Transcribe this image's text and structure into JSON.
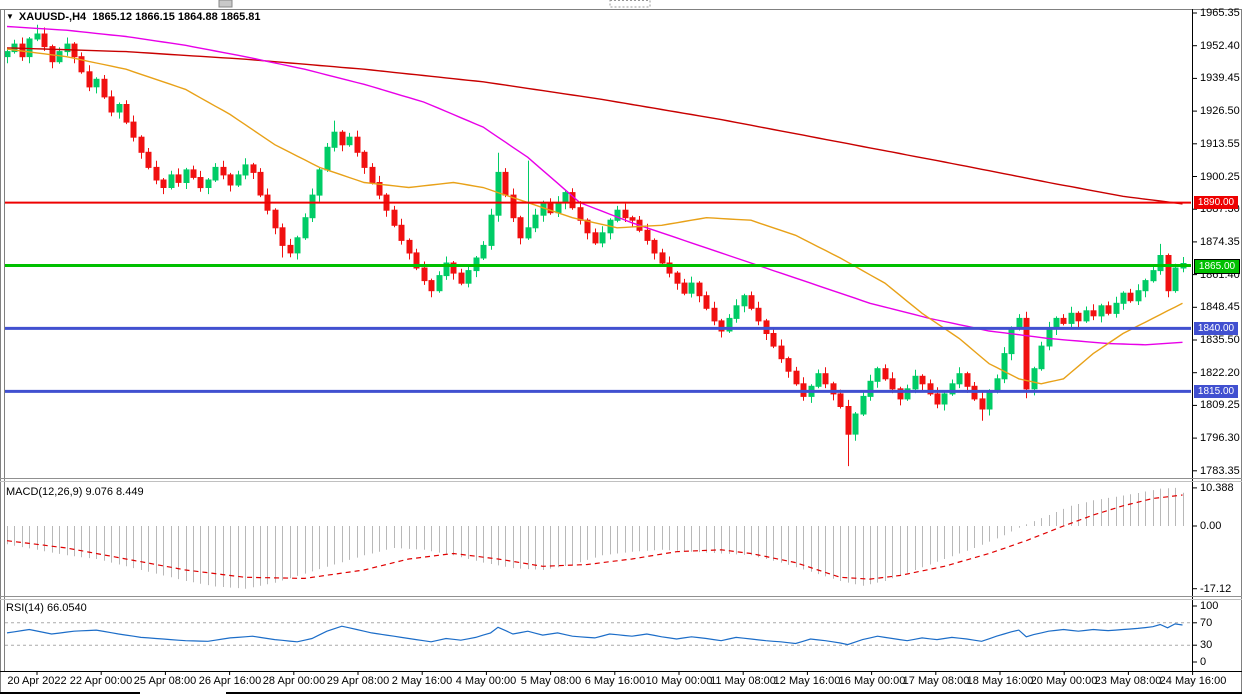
{
  "header": {
    "dropdown_glyph": "▼",
    "symbol_timeframe": "XAUUSD-,H4",
    "ohlc": "1865.12 1866.15 1864.88 1865.81"
  },
  "colors": {
    "candle_up": "#00cc66",
    "candle_down": "#f01010",
    "ma_slow": "#c80000",
    "ma_medium": "#e800e8",
    "ma_fast": "#e8a118",
    "level_red": "#ee0000",
    "level_green": "#00c000",
    "level_blue": "#4150d0",
    "macd_histogram": "#b8b8b8",
    "macd_signal": "#e00000",
    "rsi_line": "#1c6dc8",
    "rsi_level_dash": "#aaaaaa",
    "axis_text": "#000000"
  },
  "price_axis": {
    "labels": [
      "1965.35",
      "1952.40",
      "1939.45",
      "1926.50",
      "1913.55",
      "1900.25",
      "1887.30",
      "1874.35",
      "1861.40",
      "1848.45",
      "1835.50",
      "1822.20",
      "1809.25",
      "1796.30",
      "1783.35"
    ]
  },
  "time_axis": {
    "labels": [
      "20 Apr 2022",
      "22 Apr 00:00",
      "25 Apr 08:00",
      "26 Apr 16:00",
      "28 Apr 00:00",
      "29 Apr 08:00",
      "2 May 16:00",
      "4 May 00:00",
      "5 May 08:00",
      "6 May 16:00",
      "10 May 00:00",
      "11 May 08:00",
      "12 May 16:00",
      "16 May 00:00",
      "17 May 08:00",
      "18 May 16:00",
      "20 May 00:00",
      "23 May 08:00",
      "24 May 16:00"
    ]
  },
  "chart_data": {
    "type": "candlestick",
    "symbol": "XAUUSD-,H4",
    "title": "XAUUSD-,H4 1865.12 1866.15 1864.88 1865.81",
    "ylim": [
      1783.35,
      1965.35
    ],
    "price_pane": {
      "first_open": 1948,
      "closes": [
        1950,
        1953,
        1948,
        1955,
        1957,
        1952,
        1946,
        1950,
        1953,
        1948,
        1942,
        1936,
        1939,
        1932,
        1926,
        1929,
        1922,
        1916,
        1910,
        1904,
        1899,
        1896,
        1901,
        1898,
        1903,
        1900,
        1896,
        1899,
        1904,
        1901,
        1897,
        1901,
        1905,
        1902,
        1893,
        1887,
        1880,
        1873,
        1870,
        1876,
        1884,
        1893,
        1903,
        1912,
        1918,
        1913,
        1916,
        1910,
        1904,
        1898,
        1893,
        1887,
        1881,
        1875,
        1870,
        1864,
        1859,
        1855,
        1861,
        1866,
        1862,
        1858,
        1863,
        1868,
        1873,
        1885,
        1902,
        1893,
        1884,
        1876,
        1880,
        1885,
        1890,
        1886,
        1890,
        1894,
        1888,
        1883,
        1878,
        1874,
        1878,
        1883,
        1887,
        1884,
        1883,
        1879,
        1875,
        1870,
        1866,
        1862,
        1858,
        1854,
        1858,
        1853,
        1848,
        1843,
        1839,
        1844,
        1849,
        1853,
        1848,
        1843,
        1838,
        1833,
        1828,
        1823,
        1818,
        1813,
        1817,
        1822,
        1818,
        1814,
        1809,
        1798,
        1806,
        1813,
        1819,
        1824,
        1820,
        1816,
        1812,
        1816,
        1821,
        1818,
        1814,
        1810,
        1814,
        1818,
        1822,
        1817,
        1812,
        1808,
        1815,
        1820,
        1830,
        1840,
        1844,
        1816,
        1824,
        1833,
        1840,
        1844,
        1842,
        1846,
        1843,
        1847,
        1845,
        1849,
        1846,
        1850,
        1854,
        1851,
        1855,
        1859,
        1863,
        1869,
        1855,
        1864,
        1865.8
      ],
      "wick_overrides": {
        "4": [
          2,
          0
        ],
        "37": [
          0,
          4
        ],
        "44": [
          2,
          0
        ],
        "66": [
          7,
          0
        ],
        "70": [
          25,
          0
        ],
        "113": [
          0,
          11
        ],
        "131": [
          0,
          3
        ],
        "137": [
          0,
          2
        ],
        "155": [
          2,
          0
        ]
      },
      "moving_averages": [
        {
          "name": "ma-slow-red",
          "color_key": "ma_slow",
          "anchors": [
            [
              0,
              1951.5
            ],
            [
              16,
              1950
            ],
            [
              32,
              1947
            ],
            [
              48,
              1943
            ],
            [
              64,
              1938
            ],
            [
              80,
              1931
            ],
            [
              96,
              1923
            ],
            [
              112,
              1914
            ],
            [
              128,
              1905
            ],
            [
              140,
              1898
            ],
            [
              150,
              1892.5
            ],
            [
              158,
              1889.5
            ]
          ]
        },
        {
          "name": "ma-medium-magenta",
          "color_key": "ma_medium",
          "anchors": [
            [
              0,
              1960
            ],
            [
              8,
              1958.5
            ],
            [
              16,
              1956
            ],
            [
              24,
              1952.5
            ],
            [
              32,
              1948
            ],
            [
              40,
              1943
            ],
            [
              48,
              1937
            ],
            [
              56,
              1930
            ],
            [
              64,
              1920
            ],
            [
              70,
              1908
            ],
            [
              77,
              1890
            ],
            [
              84,
              1882
            ],
            [
              92,
              1874
            ],
            [
              100,
              1866
            ],
            [
              108,
              1858
            ],
            [
              116,
              1850
            ],
            [
              124,
              1844
            ],
            [
              132,
              1839
            ],
            [
              140,
              1836
            ],
            [
              148,
              1834
            ],
            [
              153,
              1833.5
            ],
            [
              158,
              1834.5
            ]
          ]
        },
        {
          "name": "ma-fast-orange",
          "color_key": "ma_fast",
          "anchors": [
            [
              0,
              1951
            ],
            [
              8,
              1948
            ],
            [
              16,
              1943
            ],
            [
              24,
              1935
            ],
            [
              30,
              1925
            ],
            [
              36,
              1913
            ],
            [
              42,
              1904
            ],
            [
              48,
              1898
            ],
            [
              54,
              1896
            ],
            [
              60,
              1898
            ],
            [
              64,
              1896
            ],
            [
              70,
              1890
            ],
            [
              76,
              1884
            ],
            [
              82,
              1880
            ],
            [
              88,
              1881
            ],
            [
              94,
              1884
            ],
            [
              100,
              1883
            ],
            [
              106,
              1877
            ],
            [
              112,
              1868
            ],
            [
              118,
              1858
            ],
            [
              123,
              1846
            ],
            [
              128,
              1836
            ],
            [
              132,
              1826
            ],
            [
              136,
              1820
            ],
            [
              139,
              1818
            ],
            [
              142,
              1820
            ],
            [
              146,
              1830
            ],
            [
              150,
              1838
            ],
            [
              154,
              1844
            ],
            [
              158,
              1850
            ]
          ]
        }
      ],
      "levels": [
        {
          "price": 1890.0,
          "label": "1890.00",
          "color_key": "level_red",
          "width": 2,
          "badge_border": false
        },
        {
          "price": 1865.0,
          "label": "1865.00",
          "color_key": "level_green",
          "width": 3,
          "badge_border": true
        },
        {
          "price": 1840.0,
          "label": "1840.00",
          "color_key": "level_blue",
          "width": 3,
          "badge_border": false
        },
        {
          "price": 1815.0,
          "label": "1815.00",
          "color_key": "level_blue",
          "width": 3,
          "badge_border": false
        }
      ]
    },
    "macd_pane": {
      "label": "MACD(12,26,9) 9.076 8.449",
      "main_value": 9.076,
      "signal_value": 8.449,
      "ylim": [
        -17.12,
        10.388
      ],
      "axis_values": [
        10.388,
        0,
        -17.12
      ],
      "axis_labels": [
        "10.388",
        "0.00",
        "-17.12"
      ],
      "histogram_anchors": [
        [
          0,
          -5
        ],
        [
          4,
          -6.5
        ],
        [
          8,
          -8
        ],
        [
          12,
          -9
        ],
        [
          16,
          -11
        ],
        [
          20,
          -13
        ],
        [
          24,
          -15
        ],
        [
          28,
          -16.5
        ],
        [
          32,
          -17.1
        ],
        [
          36,
          -15.5
        ],
        [
          40,
          -13
        ],
        [
          44,
          -10.5
        ],
        [
          48,
          -8
        ],
        [
          52,
          -6
        ],
        [
          56,
          -6.5
        ],
        [
          60,
          -8
        ],
        [
          64,
          -10
        ],
        [
          68,
          -11.5
        ],
        [
          72,
          -12
        ],
        [
          76,
          -10.5
        ],
        [
          80,
          -8
        ],
        [
          84,
          -7
        ],
        [
          88,
          -6.5
        ],
        [
          92,
          -7
        ],
        [
          96,
          -7.5
        ],
        [
          100,
          -8
        ],
        [
          104,
          -10
        ],
        [
          108,
          -12.5
        ],
        [
          112,
          -15
        ],
        [
          115,
          -16.3
        ],
        [
          118,
          -15
        ],
        [
          122,
          -12
        ],
        [
          126,
          -9
        ],
        [
          130,
          -6
        ],
        [
          134,
          -2.5
        ],
        [
          137,
          0.5
        ],
        [
          140,
          3
        ],
        [
          143,
          5.5
        ],
        [
          146,
          7
        ],
        [
          149,
          8
        ],
        [
          152,
          9
        ],
        [
          155,
          10.2
        ],
        [
          157,
          10.39
        ],
        [
          158,
          9.08
        ]
      ],
      "signal_anchors": [
        [
          0,
          -4
        ],
        [
          8,
          -6
        ],
        [
          16,
          -9
        ],
        [
          24,
          -12
        ],
        [
          32,
          -14
        ],
        [
          40,
          -14.3
        ],
        [
          48,
          -12
        ],
        [
          54,
          -9
        ],
        [
          60,
          -7.5
        ],
        [
          66,
          -9
        ],
        [
          72,
          -11
        ],
        [
          78,
          -10.5
        ],
        [
          84,
          -9
        ],
        [
          90,
          -7
        ],
        [
          96,
          -6.5
        ],
        [
          100,
          -7.5
        ],
        [
          106,
          -10
        ],
        [
          112,
          -14
        ],
        [
          116,
          -14.5
        ],
        [
          120,
          -13.5
        ],
        [
          126,
          -11
        ],
        [
          132,
          -7.5
        ],
        [
          137,
          -4
        ],
        [
          142,
          0
        ],
        [
          146,
          3
        ],
        [
          150,
          5.5
        ],
        [
          154,
          7.5
        ],
        [
          158,
          8.45
        ]
      ]
    },
    "rsi_pane": {
      "label": "RSI(14) 66.0540",
      "value": 66.054,
      "ylim": [
        0,
        100
      ],
      "axis_values": [
        100,
        70,
        30,
        0
      ],
      "axis_labels": [
        "100",
        "70",
        "30",
        "0"
      ],
      "levels": [
        70,
        30
      ],
      "anchors": [
        [
          0,
          52
        ],
        [
          3,
          58
        ],
        [
          6,
          50
        ],
        [
          9,
          55
        ],
        [
          12,
          57
        ],
        [
          15,
          50
        ],
        [
          18,
          44
        ],
        [
          21,
          41
        ],
        [
          24,
          38
        ],
        [
          27,
          37
        ],
        [
          30,
          43
        ],
        [
          33,
          46
        ],
        [
          36,
          40
        ],
        [
          39,
          36
        ],
        [
          41,
          42
        ],
        [
          43,
          55
        ],
        [
          45,
          64
        ],
        [
          47,
          58
        ],
        [
          49,
          52
        ],
        [
          52,
          46
        ],
        [
          55,
          40
        ],
        [
          57,
          36
        ],
        [
          59,
          42
        ],
        [
          61,
          39
        ],
        [
          63,
          44
        ],
        [
          65,
          52
        ],
        [
          66,
          62
        ],
        [
          68,
          50
        ],
        [
          70,
          55
        ],
        [
          72,
          48
        ],
        [
          74,
          52
        ],
        [
          76,
          46
        ],
        [
          79,
          43
        ],
        [
          81,
          50
        ],
        [
          84,
          46
        ],
        [
          86,
          50
        ],
        [
          88,
          45
        ],
        [
          90,
          41
        ],
        [
          92,
          45
        ],
        [
          94,
          42
        ],
        [
          96,
          38
        ],
        [
          98,
          44
        ],
        [
          100,
          41
        ],
        [
          102,
          38
        ],
        [
          104,
          36
        ],
        [
          106,
          33
        ],
        [
          108,
          41
        ],
        [
          110,
          38
        ],
        [
          112,
          34
        ],
        [
          113,
          31
        ],
        [
          115,
          40
        ],
        [
          117,
          46
        ],
        [
          119,
          42
        ],
        [
          121,
          38
        ],
        [
          123,
          43
        ],
        [
          125,
          40
        ],
        [
          127,
          44
        ],
        [
          129,
          41
        ],
        [
          131,
          37
        ],
        [
          133,
          46
        ],
        [
          135,
          54
        ],
        [
          136,
          57
        ],
        [
          137,
          45
        ],
        [
          138,
          49
        ],
        [
          140,
          55
        ],
        [
          142,
          58
        ],
        [
          144,
          55
        ],
        [
          146,
          58
        ],
        [
          148,
          56
        ],
        [
          150,
          58
        ],
        [
          152,
          60
        ],
        [
          154,
          63
        ],
        [
          155,
          67
        ],
        [
          156,
          61
        ],
        [
          157,
          68
        ],
        [
          158,
          66.05
        ]
      ]
    }
  }
}
